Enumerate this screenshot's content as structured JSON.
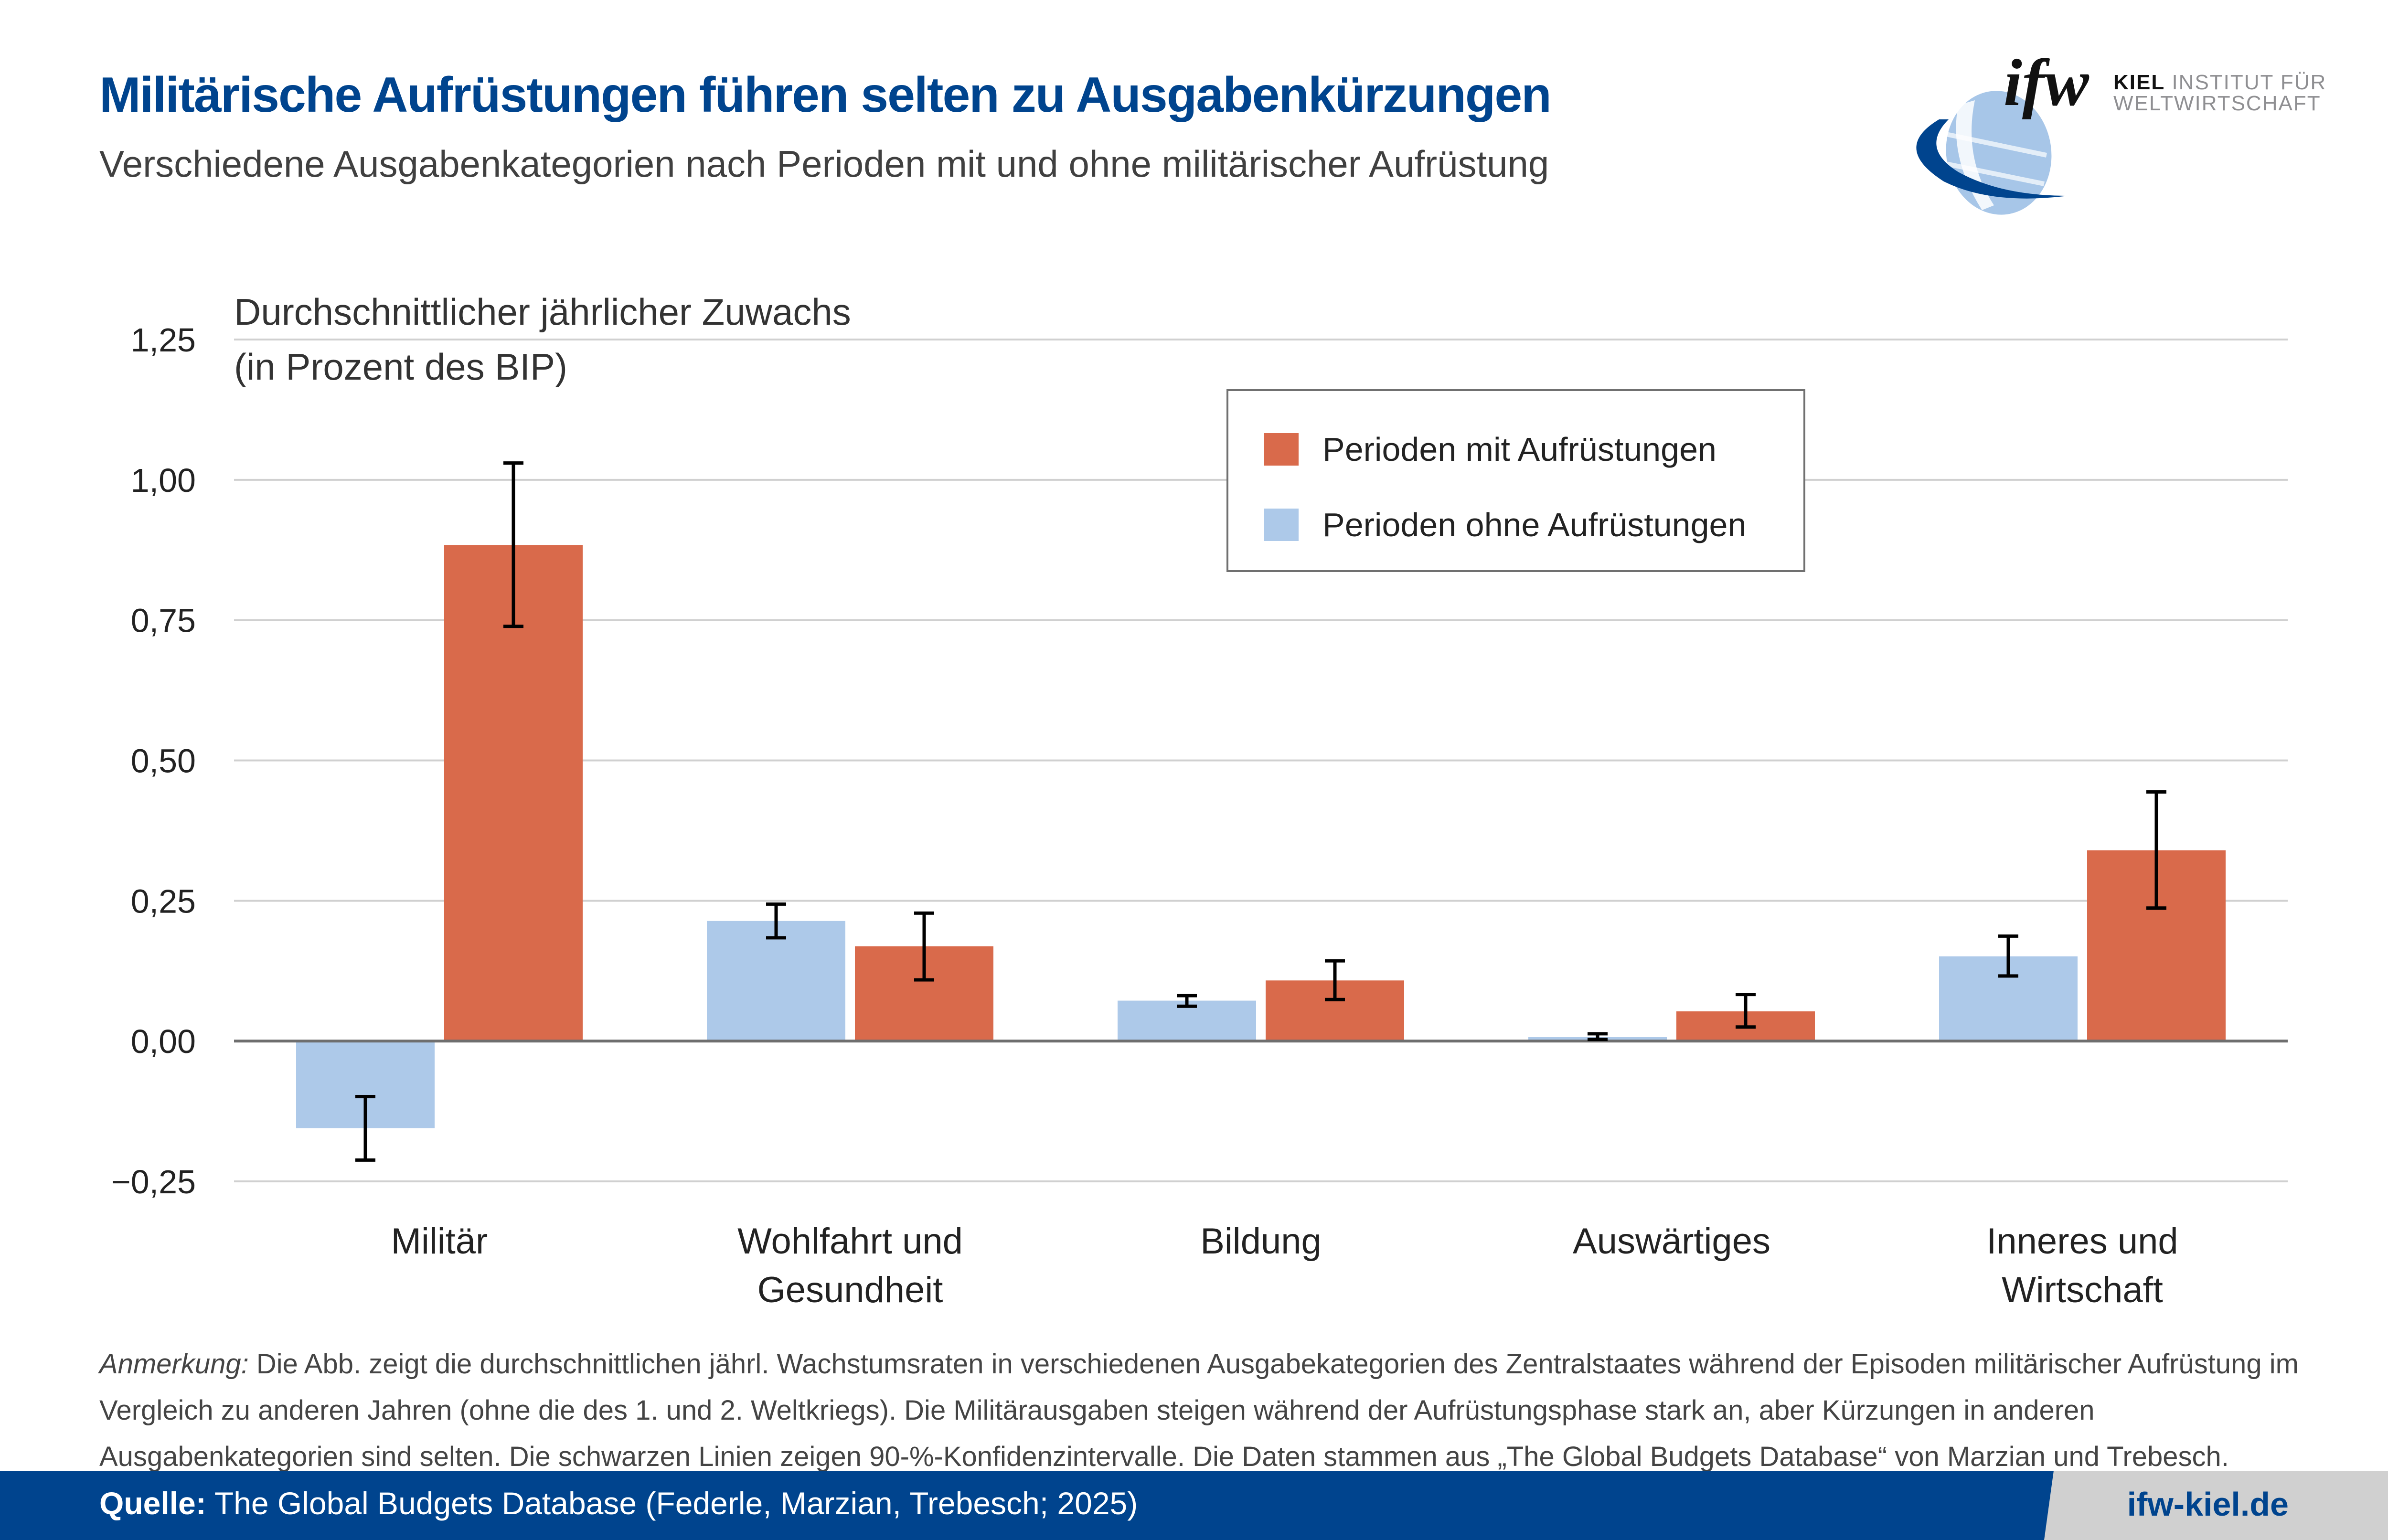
{
  "header": {
    "title": "Militärische Aufrüstungen führen selten zu Ausgabenkürzungen",
    "subtitle": "Verschiedene Ausgabenkategorien nach Perioden mit und ohne militärischer Aufrüstung"
  },
  "logo": {
    "mark": "ifw",
    "line1_bold": "KIEL",
    "line1_rest": " INSTITUT FÜR",
    "line2": "WELTWIRTSCHAFT",
    "icon": "globe-icon"
  },
  "colors": {
    "with_rearmament": "#d96a4b",
    "without_rearmament": "#adc9e9",
    "brand_blue": "#00448e",
    "footer_gray": "#d0d0d0"
  },
  "chart_data": {
    "type": "bar",
    "title": "Militärische Aufrüstungen führen selten zu Ausgabenkürzungen",
    "ylabel_line1": "Durchschnittlicher jährlicher Zuwachs",
    "ylabel_line2": "(in Prozent des BIP)",
    "xlabel": "",
    "ylim": [
      -0.25,
      1.25
    ],
    "yticks": [
      -0.25,
      0,
      0.25,
      0.5,
      0.75,
      1.0,
      1.25
    ],
    "ytick_labels": [
      "−0,25",
      "0,00",
      "0,25",
      "0,50",
      "0,75",
      "1,00",
      "1,25"
    ],
    "grid": true,
    "legend_position": "top-center",
    "categories": [
      [
        "Militär"
      ],
      [
        "Wohlfahrt und",
        "Gesundheit"
      ],
      [
        "Bildung"
      ],
      [
        "Auswärtiges"
      ],
      [
        "Inneres und",
        "Wirtschaft"
      ]
    ],
    "series": [
      {
        "name": "Perioden ohne Aufrüstungen",
        "color": "#adc9e9",
        "values": [
          -0.155,
          0.214,
          0.072,
          0.007,
          0.151
        ],
        "ci_low": [
          -0.212,
          0.184,
          0.062,
          0.003,
          0.116
        ],
        "ci_high": [
          -0.099,
          0.244,
          0.081,
          0.013,
          0.187
        ]
      },
      {
        "name": "Perioden mit Aufrüstungen",
        "color": "#d96a4b",
        "values": [
          0.884,
          0.169,
          0.108,
          0.053,
          0.34
        ],
        "ci_low": [
          0.739,
          0.109,
          0.074,
          0.025,
          0.237
        ],
        "ci_high": [
          1.03,
          0.228,
          0.143,
          0.083,
          0.444
        ]
      }
    ],
    "legend": [
      "Perioden mit Aufrüstungen",
      "Perioden ohne Aufrüstungen"
    ],
    "error_bars": "90-%-Konfidenzintervalle"
  },
  "note": {
    "label": "Anmerkung:",
    "text": " Die Abb. zeigt die durchschnittlichen jährl. Wachstumsraten in verschiedenen Ausgabekategorien des Zentralstaates während der Episoden militärischer Aufrüstung im Vergleich zu anderen Jahren (ohne die des 1. und 2. Weltkriegs). Die Militärausgaben steigen während der Aufrüstungsphase stark an, aber Kürzungen in anderen Ausgabenkategorien sind selten. Die schwarzen Linien zeigen 90-%-Konfidenzintervalle. Die Daten stammen aus „The Global Budgets Database“ von Marzian und Trebesch."
  },
  "footer": {
    "source_label": "Quelle:",
    "source_text": " The Global Budgets Database (Federle, Marzian, Trebesch; 2025)",
    "website": "ifw-kiel.de"
  }
}
